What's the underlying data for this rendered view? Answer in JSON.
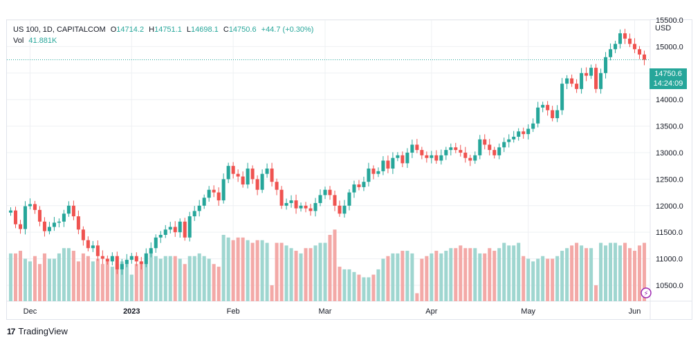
{
  "header": {
    "symbol": "US 100, 1D, CAPITALCOM",
    "open_label": "O",
    "open": "14714.2",
    "high_label": "H",
    "high": "14751.1",
    "low_label": "L",
    "low": "14698.1",
    "close_label": "C",
    "close": "14750.6",
    "change": "+44.7 (+0.30%)",
    "vol_label": "Vol",
    "vol_value": "41.881K"
  },
  "axis": {
    "currency": "USD",
    "last_price": "14750.6",
    "countdown": "14:24:09"
  },
  "brand": {
    "name": "TradingView",
    "logo": "17"
  },
  "colors": {
    "up": "#26a69a",
    "down": "#ef5350",
    "up_vol": "#9fd6d0",
    "down_vol": "#f3a9a7",
    "grid": "#eef0f3"
  },
  "chart_data": {
    "type": "candlestick",
    "title": "US 100, 1D, CAPITALCOM",
    "ylabel": "USD",
    "ylim": [
      10200,
      15500
    ],
    "yticks": [
      "10500.0",
      "11000.0",
      "11500.0",
      "12000.0",
      "12500.0",
      "13000.0",
      "13500.0",
      "14000.0",
      "14500.0",
      "15000.0",
      "15500.0"
    ],
    "xticks": [
      {
        "label": "Dec",
        "index": 4
      },
      {
        "label": "2023",
        "index": 25
      },
      {
        "label": "Feb",
        "index": 46
      },
      {
        "label": "Mar",
        "index": 65
      },
      {
        "label": "Apr",
        "index": 87
      },
      {
        "label": "May",
        "index": 107
      },
      {
        "label": "Jun",
        "index": 129
      }
    ],
    "last_price": 14750.6,
    "close": [
      11910,
      11650,
      11560,
      11990,
      12030,
      11920,
      11700,
      11520,
      11600,
      11680,
      11700,
      11850,
      12000,
      11800,
      11550,
      11350,
      11200,
      11250,
      11050,
      11000,
      10950,
      11050,
      10800,
      10900,
      10980,
      11050,
      10950,
      10900,
      11100,
      11200,
      11400,
      11450,
      11550,
      11600,
      11500,
      11700,
      11400,
      11800,
      11900,
      12000,
      12150,
      12300,
      12250,
      12100,
      12500,
      12750,
      12600,
      12550,
      12400,
      12700,
      12500,
      12300,
      12600,
      12700,
      12450,
      12300,
      12000,
      12050,
      12100,
      11950,
      12000,
      11950,
      11900,
      12050,
      12200,
      12300,
      12200,
      12000,
      11850,
      12000,
      12250,
      12400,
      12350,
      12450,
      12700,
      12600,
      12650,
      12850,
      12700,
      12900,
      12950,
      12800,
      13000,
      13150,
      13050,
      12950,
      12900,
      12950,
      12850,
      12950,
      13050,
      13100,
      13050,
      13000,
      12900,
      12850,
      12950,
      13250,
      13150,
      13050,
      12950,
      13100,
      13200,
      13250,
      13300,
      13400,
      13350,
      13450,
      13550,
      13850,
      13900,
      13800,
      13650,
      13800,
      14300,
      14400,
      14300,
      14200,
      14500,
      14450,
      14600,
      14200,
      14500,
      14800,
      14950,
      15050,
      15250,
      15150,
      15050,
      14950,
      14850,
      14750
    ],
    "volume": [
      11100,
      11100,
      11150,
      11000,
      10950,
      11050,
      10900,
      11100,
      11000,
      11000,
      11100,
      11200,
      11200,
      11150,
      10950,
      11100,
      11050,
      10950,
      11000,
      10900,
      10950,
      10850,
      10900,
      10950,
      10900,
      10700,
      10900,
      10950,
      11100,
      11150,
      11050,
      11000,
      11050,
      11050,
      11050,
      11000,
      10900,
      11050,
      11050,
      11100,
      11050,
      11000,
      10900,
      10850,
      11450,
      11400,
      11350,
      11400,
      11400,
      11350,
      11300,
      11350,
      11350,
      11300,
      10500,
      11300,
      11300,
      11250,
      11200,
      11150,
      11100,
      11200,
      11200,
      11250,
      11300,
      11300,
      11450,
      11550,
      10850,
      10800,
      10800,
      10750,
      10700,
      10650,
      10650,
      10700,
      10800,
      11000,
      11050,
      11100,
      11100,
      11150,
      11150,
      11100,
      10350,
      11000,
      11050,
      11100,
      11150,
      11100,
      11150,
      11200,
      11200,
      11250,
      11200,
      11200,
      11200,
      11100,
      11100,
      11200,
      11150,
      11200,
      11300,
      11250,
      11250,
      11300,
      11050,
      11000,
      10950,
      11000,
      11050,
      11000,
      11000,
      11050,
      11150,
      11200,
      11250,
      11300,
      11250,
      11200,
      11200,
      10500,
      11300,
      11250,
      11300,
      11300,
      11250,
      11300,
      11200,
      11150,
      11250,
      11300
    ]
  }
}
